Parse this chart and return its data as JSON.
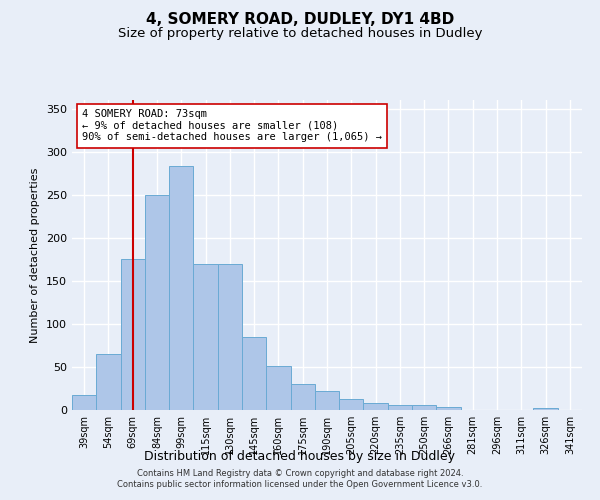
{
  "title": "4, SOMERY ROAD, DUDLEY, DY1 4BD",
  "subtitle": "Size of property relative to detached houses in Dudley",
  "xlabel": "Distribution of detached houses by size in Dudley",
  "ylabel": "Number of detached properties",
  "categories": [
    "39sqm",
    "54sqm",
    "69sqm",
    "84sqm",
    "99sqm",
    "115sqm",
    "130sqm",
    "145sqm",
    "160sqm",
    "175sqm",
    "190sqm",
    "205sqm",
    "220sqm",
    "235sqm",
    "250sqm",
    "266sqm",
    "281sqm",
    "296sqm",
    "311sqm",
    "326sqm",
    "341sqm"
  ],
  "values": [
    18,
    65,
    175,
    250,
    283,
    170,
    170,
    85,
    51,
    30,
    22,
    13,
    8,
    6,
    6,
    3,
    0,
    0,
    0,
    2,
    0
  ],
  "bar_color": "#aec6e8",
  "bar_edge_color": "#6aaad4",
  "vline_x": 2,
  "vline_color": "#cc0000",
  "annotation_text": "4 SOMERY ROAD: 73sqm\n← 9% of detached houses are smaller (108)\n90% of semi-detached houses are larger (1,065) →",
  "annotation_box_color": "#ffffff",
  "annotation_box_edge": "#cc0000",
  "ylim": [
    0,
    360
  ],
  "yticks": [
    0,
    50,
    100,
    150,
    200,
    250,
    300,
    350
  ],
  "footer1": "Contains HM Land Registry data © Crown copyright and database right 2024.",
  "footer2": "Contains public sector information licensed under the Open Government Licence v3.0.",
  "background_color": "#e8eef8",
  "grid_color": "#ffffff",
  "title_fontsize": 11,
  "subtitle_fontsize": 9.5
}
